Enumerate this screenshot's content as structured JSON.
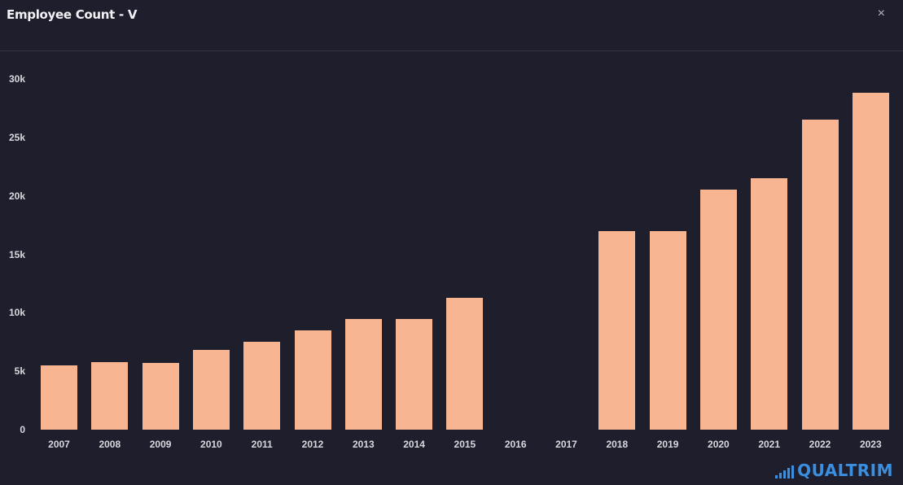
{
  "header": {
    "title": "Employee Count - V",
    "close_label": "×"
  },
  "brand": {
    "name": "QUALTRIM",
    "color": "#3b8fe0"
  },
  "colors": {
    "bar": "#f7b592",
    "background": "#1f1e2c"
  },
  "chart_data": {
    "type": "bar",
    "title": "Employee Count - V",
    "xlabel": "",
    "ylabel": "",
    "ylim": [
      0,
      30000
    ],
    "yticks": [
      "0",
      "5k",
      "10k",
      "15k",
      "20k",
      "25k",
      "30k"
    ],
    "grid": false,
    "legend": null,
    "categories": [
      "2007",
      "2008",
      "2009",
      "2010",
      "2011",
      "2012",
      "2013",
      "2014",
      "2015",
      "2016",
      "2017",
      "2018",
      "2019",
      "2020",
      "2021",
      "2022",
      "2023"
    ],
    "values": [
      5500,
      5800,
      5700,
      6800,
      7500,
      8500,
      9500,
      9500,
      11300,
      null,
      null,
      17000,
      17000,
      20500,
      21500,
      26500,
      28800
    ]
  }
}
